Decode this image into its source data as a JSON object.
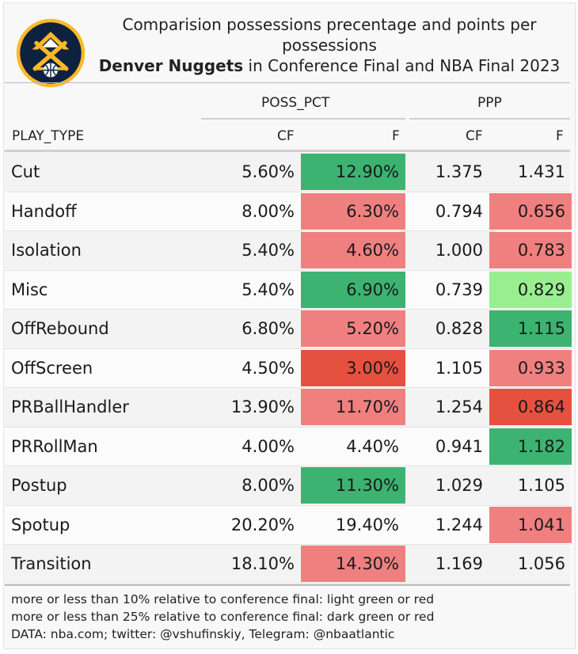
{
  "title": {
    "line1": "Comparision possessions precentage and points per possessions",
    "line2_bold": "Denver Nuggets",
    "line2_rest": " in Conference Final and NBA Final 2023"
  },
  "colors": {
    "dark_green": "#3cb371",
    "light_green": "#99ee90",
    "light_red": "#f08080",
    "dark_red": "#e6503f",
    "none": "transparent"
  },
  "chart_data": {
    "type": "table",
    "spanners": [
      "POSS_PCT",
      "PPP"
    ],
    "columns": [
      "PLAY_TYPE",
      "CF",
      "F",
      "CF",
      "F"
    ],
    "rows": [
      {
        "play_type": "Cut",
        "poss_cf": "5.60%",
        "poss_f": "12.90%",
        "ppp_cf": "1.375",
        "ppp_f": "1.431",
        "poss_f_color": "dark_green",
        "ppp_f_color": "none"
      },
      {
        "play_type": "Handoff",
        "poss_cf": "8.00%",
        "poss_f": "6.30%",
        "ppp_cf": "0.794",
        "ppp_f": "0.656",
        "poss_f_color": "light_red",
        "ppp_f_color": "light_red"
      },
      {
        "play_type": "Isolation",
        "poss_cf": "5.40%",
        "poss_f": "4.60%",
        "ppp_cf": "1.000",
        "ppp_f": "0.783",
        "poss_f_color": "light_red",
        "ppp_f_color": "light_red"
      },
      {
        "play_type": "Misc",
        "poss_cf": "5.40%",
        "poss_f": "6.90%",
        "ppp_cf": "0.739",
        "ppp_f": "0.829",
        "poss_f_color": "dark_green",
        "ppp_f_color": "light_green"
      },
      {
        "play_type": "OffRebound",
        "poss_cf": "6.80%",
        "poss_f": "5.20%",
        "ppp_cf": "0.828",
        "ppp_f": "1.115",
        "poss_f_color": "light_red",
        "ppp_f_color": "dark_green"
      },
      {
        "play_type": "OffScreen",
        "poss_cf": "4.50%",
        "poss_f": "3.00%",
        "ppp_cf": "1.105",
        "ppp_f": "0.933",
        "poss_f_color": "dark_red",
        "ppp_f_color": "light_red"
      },
      {
        "play_type": "PRBallHandler",
        "poss_cf": "13.90%",
        "poss_f": "11.70%",
        "ppp_cf": "1.254",
        "ppp_f": "0.864",
        "poss_f_color": "light_red",
        "ppp_f_color": "dark_red"
      },
      {
        "play_type": "PRRollMan",
        "poss_cf": "4.00%",
        "poss_f": "4.40%",
        "ppp_cf": "0.941",
        "ppp_f": "1.182",
        "poss_f_color": "none",
        "ppp_f_color": "dark_green"
      },
      {
        "play_type": "Postup",
        "poss_cf": "8.00%",
        "poss_f": "11.30%",
        "ppp_cf": "1.029",
        "ppp_f": "1.105",
        "poss_f_color": "dark_green",
        "ppp_f_color": "none"
      },
      {
        "play_type": "Spotup",
        "poss_cf": "20.20%",
        "poss_f": "19.40%",
        "ppp_cf": "1.244",
        "ppp_f": "1.041",
        "poss_f_color": "none",
        "ppp_f_color": "light_red"
      },
      {
        "play_type": "Transition",
        "poss_cf": "18.10%",
        "poss_f": "14.30%",
        "ppp_cf": "1.169",
        "ppp_f": "1.056",
        "poss_f_color": "light_red",
        "ppp_f_color": "none"
      }
    ]
  },
  "footnotes": [
    "more or less than 10% relative to conference final: light green or red",
    "more or less than 25% relative to conference final: dark green or red",
    "DATA: nba.com; twitter: @vshufinskiy, Telegram: @nbaatlantic"
  ]
}
